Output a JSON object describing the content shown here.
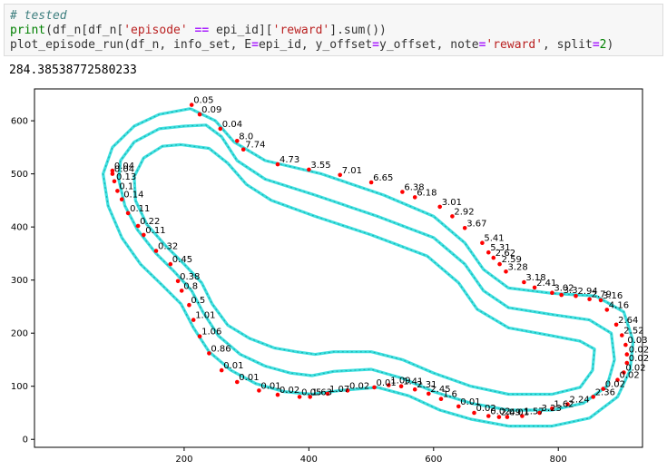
{
  "code_cell": {
    "line1": {
      "comment": "# tested"
    },
    "line2": {
      "fn": "print",
      "pre": "(df_n[df_n[",
      "str1": "'episode'",
      "op": " == ",
      "mid": "epi_id][",
      "str2": "'reward'",
      "post": "].sum())"
    },
    "line3": {
      "pre": "plot_episode_run(df_n, info_set, E",
      "eq1": "=",
      "mid1": "epi_id, y_offset",
      "eq2": "=",
      "mid2": "y_offset, note",
      "eq3": "=",
      "str": "'reward'",
      "mid3": ", split",
      "eq4": "=",
      "num": "2",
      "post": ")"
    }
  },
  "output": {
    "text": "284.38538772580233"
  },
  "colors": {
    "track": "#3ee0e0",
    "points": "#ff0000",
    "comment": "#408080",
    "string": "#ba2121",
    "builtin": "#008000",
    "operator": "#aa22ff"
  },
  "chart_data": {
    "type": "scatter",
    "xlim": [
      -40,
      935
    ],
    "ylim": [
      -15,
      660
    ],
    "xticks": [
      200,
      400,
      600,
      800
    ],
    "yticks": [
      0,
      100,
      200,
      300,
      400,
      500,
      600
    ],
    "grid": false,
    "track_outer": [
      [
        210,
        623
      ],
      [
        160,
        612
      ],
      [
        120,
        590
      ],
      [
        85,
        550
      ],
      [
        70,
        500
      ],
      [
        78,
        440
      ],
      [
        100,
        380
      ],
      [
        130,
        330
      ],
      [
        165,
        290
      ],
      [
        195,
        255
      ],
      [
        215,
        210
      ],
      [
        240,
        165
      ],
      [
        275,
        130
      ],
      [
        315,
        105
      ],
      [
        360,
        90
      ],
      [
        405,
        85
      ],
      [
        450,
        92
      ],
      [
        510,
        98
      ],
      [
        560,
        82
      ],
      [
        610,
        55
      ],
      [
        660,
        38
      ],
      [
        720,
        25
      ],
      [
        790,
        25
      ],
      [
        850,
        40
      ],
      [
        895,
        80
      ],
      [
        915,
        130
      ],
      [
        920,
        185
      ],
      [
        905,
        240
      ],
      [
        860,
        270
      ],
      [
        790,
        275
      ],
      [
        720,
        285
      ],
      [
        680,
        320
      ],
      [
        650,
        370
      ],
      [
        600,
        420
      ],
      [
        520,
        460
      ],
      [
        420,
        500
      ],
      [
        330,
        525
      ],
      [
        280,
        560
      ],
      [
        250,
        600
      ],
      [
        210,
        623
      ]
    ],
    "track_center": [
      [
        200,
        590
      ],
      [
        160,
        585
      ],
      [
        120,
        560
      ],
      [
        98,
        525
      ],
      [
        95,
        490
      ],
      [
        105,
        440
      ],
      [
        125,
        395
      ],
      [
        155,
        350
      ],
      [
        185,
        315
      ],
      [
        212,
        280
      ],
      [
        230,
        240
      ],
      [
        255,
        195
      ],
      [
        290,
        160
      ],
      [
        330,
        138
      ],
      [
        370,
        125
      ],
      [
        405,
        120
      ],
      [
        440,
        128
      ],
      [
        500,
        132
      ],
      [
        550,
        115
      ],
      [
        600,
        90
      ],
      [
        660,
        68
      ],
      [
        720,
        55
      ],
      [
        790,
        55
      ],
      [
        840,
        68
      ],
      [
        878,
        100
      ],
      [
        890,
        150
      ],
      [
        885,
        200
      ],
      [
        850,
        225
      ],
      [
        790,
        235
      ],
      [
        720,
        248
      ],
      [
        680,
        280
      ],
      [
        650,
        330
      ],
      [
        600,
        380
      ],
      [
        510,
        420
      ],
      [
        410,
        460
      ],
      [
        330,
        490
      ],
      [
        285,
        525
      ],
      [
        260,
        570
      ],
      [
        235,
        592
      ],
      [
        200,
        590
      ]
    ],
    "track_inner": [
      [
        195,
        555
      ],
      [
        165,
        552
      ],
      [
        135,
        530
      ],
      [
        120,
        495
      ],
      [
        122,
        450
      ],
      [
        140,
        405
      ],
      [
        170,
        365
      ],
      [
        200,
        330
      ],
      [
        228,
        295
      ],
      [
        245,
        255
      ],
      [
        270,
        215
      ],
      [
        305,
        190
      ],
      [
        345,
        172
      ],
      [
        380,
        165
      ],
      [
        410,
        160
      ],
      [
        440,
        165
      ],
      [
        500,
        165
      ],
      [
        550,
        150
      ],
      [
        600,
        125
      ],
      [
        660,
        100
      ],
      [
        720,
        85
      ],
      [
        790,
        85
      ],
      [
        835,
        98
      ],
      [
        855,
        130
      ],
      [
        858,
        170
      ],
      [
        835,
        185
      ],
      [
        790,
        195
      ],
      [
        720,
        210
      ],
      [
        670,
        245
      ],
      [
        640,
        295
      ],
      [
        590,
        345
      ],
      [
        500,
        385
      ],
      [
        410,
        420
      ],
      [
        340,
        450
      ],
      [
        300,
        480
      ],
      [
        270,
        520
      ],
      [
        240,
        548
      ],
      [
        195,
        555
      ]
    ],
    "points": [
      {
        "x": 212,
        "y": 630,
        "v": "0.05"
      },
      {
        "x": 225,
        "y": 612,
        "v": "0.09"
      },
      {
        "x": 258,
        "y": 585,
        "v": "0.04"
      },
      {
        "x": 285,
        "y": 562,
        "v": "8.0"
      },
      {
        "x": 295,
        "y": 546,
        "v": "7.74"
      },
      {
        "x": 350,
        "y": 518,
        "v": "4.73"
      },
      {
        "x": 400,
        "y": 508,
        "v": "3.55"
      },
      {
        "x": 450,
        "y": 498,
        "v": "7.01"
      },
      {
        "x": 500,
        "y": 484,
        "v": "6.65"
      },
      {
        "x": 550,
        "y": 466,
        "v": "6.38"
      },
      {
        "x": 570,
        "y": 456,
        "v": "6.18"
      },
      {
        "x": 610,
        "y": 438,
        "v": "3.01"
      },
      {
        "x": 630,
        "y": 420,
        "v": "2.92"
      },
      {
        "x": 650,
        "y": 398,
        "v": "3.67"
      },
      {
        "x": 678,
        "y": 370,
        "v": "5.41"
      },
      {
        "x": 688,
        "y": 352,
        "v": "5.31"
      },
      {
        "x": 696,
        "y": 342,
        "v": "2.62"
      },
      {
        "x": 706,
        "y": 330,
        "v": "2.59"
      },
      {
        "x": 716,
        "y": 316,
        "v": "3.28"
      },
      {
        "x": 745,
        "y": 296,
        "v": "3.18"
      },
      {
        "x": 762,
        "y": 286,
        "v": "2.41"
      },
      {
        "x": 790,
        "y": 276,
        "v": "3.02"
      },
      {
        "x": 805,
        "y": 272,
        "v": "3.3"
      },
      {
        "x": 828,
        "y": 270,
        "v": "2.94"
      },
      {
        "x": 850,
        "y": 264,
        "v": "2.79"
      },
      {
        "x": 868,
        "y": 262,
        "v": "3.16"
      },
      {
        "x": 878,
        "y": 244,
        "v": "4.16"
      },
      {
        "x": 893,
        "y": 216,
        "v": "2.64"
      },
      {
        "x": 902,
        "y": 196,
        "v": "2.52"
      },
      {
        "x": 908,
        "y": 178,
        "v": "0.03"
      },
      {
        "x": 910,
        "y": 160,
        "v": "0.02"
      },
      {
        "x": 910,
        "y": 144,
        "v": "0.02"
      },
      {
        "x": 905,
        "y": 126,
        "v": "0.02"
      },
      {
        "x": 895,
        "y": 112,
        "v": "0.02"
      },
      {
        "x": 872,
        "y": 95,
        "v": "0.02"
      },
      {
        "x": 856,
        "y": 80,
        "v": "2.36"
      },
      {
        "x": 815,
        "y": 66,
        "v": "2.24"
      },
      {
        "x": 790,
        "y": 58,
        "v": "1.62"
      },
      {
        "x": 770,
        "y": 50,
        "v": "3.23"
      },
      {
        "x": 742,
        "y": 44,
        "v": "1.57"
      },
      {
        "x": 718,
        "y": 42,
        "v": "0.01"
      },
      {
        "x": 705,
        "y": 42,
        "v": "2.49"
      },
      {
        "x": 688,
        "y": 44,
        "v": "0.02"
      },
      {
        "x": 665,
        "y": 50,
        "v": "0.02"
      },
      {
        "x": 640,
        "y": 62,
        "v": "0.01"
      },
      {
        "x": 612,
        "y": 76,
        "v": "1.6"
      },
      {
        "x": 592,
        "y": 86,
        "v": "2.45"
      },
      {
        "x": 570,
        "y": 94,
        "v": "2.31"
      },
      {
        "x": 548,
        "y": 100,
        "v": "1.41"
      },
      {
        "x": 528,
        "y": 102,
        "v": "1.09"
      },
      {
        "x": 505,
        "y": 98,
        "v": "0.01"
      },
      {
        "x": 462,
        "y": 92,
        "v": "0.02"
      },
      {
        "x": 430,
        "y": 86,
        "v": "1.07"
      },
      {
        "x": 402,
        "y": 80,
        "v": "1.63"
      },
      {
        "x": 385,
        "y": 80,
        "v": "0.05"
      },
      {
        "x": 350,
        "y": 84,
        "v": "0.02"
      },
      {
        "x": 320,
        "y": 92,
        "v": "0.01"
      },
      {
        "x": 285,
        "y": 108,
        "v": "0.01"
      },
      {
        "x": 260,
        "y": 130,
        "v": "0.01"
      },
      {
        "x": 240,
        "y": 162,
        "v": "0.86"
      },
      {
        "x": 225,
        "y": 194,
        "v": "1.06"
      },
      {
        "x": 215,
        "y": 225,
        "v": "1.01"
      },
      {
        "x": 208,
        "y": 253,
        "v": "0.5"
      },
      {
        "x": 196,
        "y": 280,
        "v": "0.8"
      },
      {
        "x": 190,
        "y": 298,
        "v": "0.38"
      },
      {
        "x": 178,
        "y": 330,
        "v": "0.45"
      },
      {
        "x": 155,
        "y": 355,
        "v": "0.32"
      },
      {
        "x": 135,
        "y": 385,
        "v": "0.11"
      },
      {
        "x": 126,
        "y": 402,
        "v": "0.22"
      },
      {
        "x": 110,
        "y": 426,
        "v": "0.11"
      },
      {
        "x": 100,
        "y": 452,
        "v": "0.14"
      },
      {
        "x": 93,
        "y": 468,
        "v": "0.1"
      },
      {
        "x": 88,
        "y": 486,
        "v": "0.13"
      },
      {
        "x": 85,
        "y": 500,
        "v": "0.04"
      },
      {
        "x": 85,
        "y": 506,
        "v": "0.04"
      }
    ]
  }
}
